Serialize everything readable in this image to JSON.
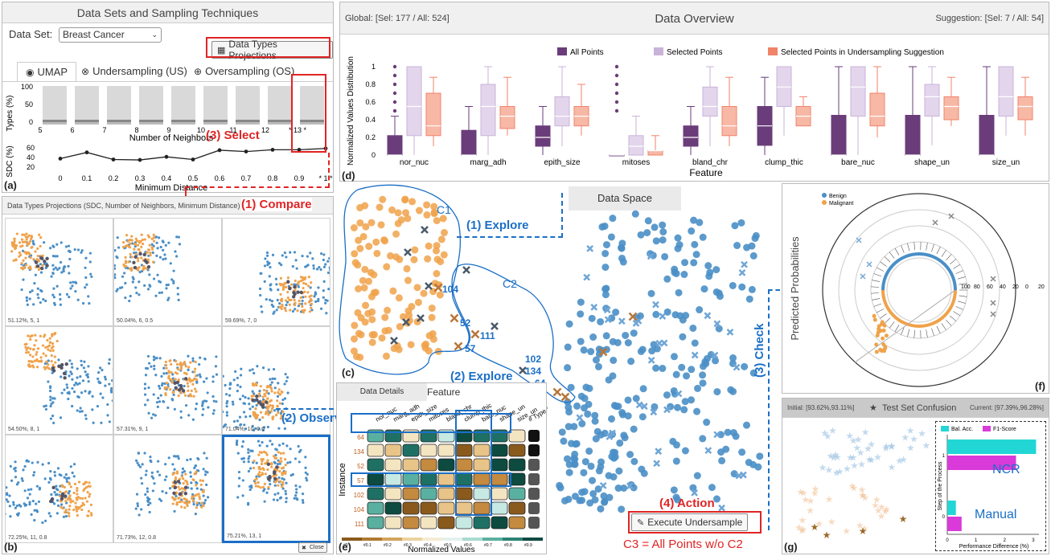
{
  "panel_a": {
    "title": "Data Sets and Sampling Techniques",
    "dataset_label": "Data Set:",
    "dataset_value": "Breast Cancer",
    "projections_button": "Data Types Projections",
    "tabs": [
      "UMAP",
      "Undersampling (US)",
      "Oversampling (OS)"
    ],
    "types_axis": "Types (%)",
    "types_ticks": [
      "100",
      "50",
      "0"
    ],
    "neighbors_ticks": [
      "5",
      "6",
      "7",
      "8",
      "9",
      "10",
      "11",
      "12",
      "* 13 *"
    ],
    "neighbors_label": "Number of Neighbors",
    "sdc_axis": "SDC (%)",
    "sdc_ticks": [
      "60",
      "40",
      "20"
    ],
    "distance_ticks": [
      "0",
      "0.1",
      "0.2",
      "0.3",
      "0.4",
      "0.5",
      "0.6",
      "0.7",
      "0.8",
      "0.9",
      "* 1 *"
    ],
    "distance_label": "Minimum Distance",
    "letter": "(a)"
  },
  "panel_b": {
    "title": "Data Types Projections (SDC, Number of Neighbors, Minimum Distance)",
    "captions": [
      "51.12%, 5, 1",
      "50.04%, 6, 0.5",
      "59.69%, 7, 0",
      "54.50%, 8, 1",
      "57.31%, 9, 1",
      "71.04%, 10, 0.6",
      "72.25%, 11, 0.8",
      "71.73%, 12, 0.8",
      "75.21%, 13, 1"
    ],
    "close_label": "Close",
    "letter": "(b)"
  },
  "panel_d": {
    "global": "Global: [Sel: 177 / All: 524]",
    "title": "Data Overview",
    "suggestion": "Suggestion: [Sel: 7 / All: 54]",
    "legend": [
      "All Points",
      "Selected Points",
      "Selected Points in Undersampling Suggestion"
    ],
    "y_label": "Normalized Values Distribution",
    "y_ticks": [
      "1",
      "0.8",
      "0.6",
      "0.4",
      "0.2",
      "0"
    ],
    "features": [
      "nor_nuc",
      "marg_adh",
      "epith_size",
      "mitoses",
      "bland_chr",
      "clump_thic",
      "bare_nuc",
      "shape_un",
      "size_un"
    ],
    "x_label": "Feature",
    "letter": "(d)"
  },
  "panel_c": {
    "title": "Data Space",
    "labels": {
      "c1": "C1",
      "c2": "C2",
      "i104": "104",
      "i52": "52",
      "i111": "111",
      "i57": "57",
      "i102": "102",
      "i134": "134",
      "i64": "64"
    },
    "execute_button": "Execute Undersample",
    "letter": "(c)"
  },
  "panel_e": {
    "title": "Data Details",
    "feature_header": "Feature",
    "columns": [
      "nor_nuc",
      "marg_adh",
      "epith_size",
      "mitoses",
      "bland_chr",
      "clump_thic",
      "bare_nuc",
      "shape_un",
      "size_un"
    ],
    "type_header": "# Type #",
    "rows": [
      "64",
      "134",
      "52",
      "57",
      "102",
      "104",
      "111"
    ],
    "y_label": "Instance",
    "scale_ticks": [
      "#0",
      "#0.1",
      "#0.2",
      "#0.3",
      "#0.4",
      "#0.5",
      "#0.6",
      "#0.7",
      "#0.8",
      "#0.9"
    ],
    "x_label": "Normalized Values",
    "letter": "(e)"
  },
  "panel_f": {
    "legend": [
      "Benign",
      "Malignant"
    ],
    "y_label": "Predicted Probabilities",
    "radial_ticks": [
      "100",
      "80",
      "60",
      "40",
      "20",
      "0",
      "20"
    ],
    "letter": "(f)"
  },
  "panel_g": {
    "initial": "Initial: [93.62%,93.11%]",
    "title": "Test Set Confusion",
    "current": "Current: [97.39%,96.28%]",
    "legend": [
      "Bal. Acc.",
      "F1-Score"
    ],
    "bar_chart_y_label": "Step of the Process",
    "bar_chart_x_label": "Performance Difference (%)",
    "x_ticks": [
      "0",
      "1",
      "2",
      "3"
    ],
    "step_ticks": [
      "1",
      "0"
    ],
    "ncr_label": "NCR",
    "manual_label": "Manual",
    "letter": "(g)"
  },
  "annotations": {
    "select": "(3) Select",
    "compare": "(1) Compare",
    "explore1": "(1) Explore",
    "explore2": "(2) Explore",
    "observe": "(2) Observe",
    "check": "(3) Check",
    "action": "(4) Action",
    "c3": "C3 = All Points w/o C2"
  },
  "colors": {
    "blue_point": "#4a8fc7",
    "orange_point": "#f0a24a",
    "purple_dark": "#6a3d7a",
    "purple_light": "#c9b3d9",
    "salmon": "#f0836a",
    "annotation_red": "#e02424",
    "annotation_blue": "#1b6fc7"
  },
  "chart_data": [
    {
      "type": "box",
      "y_label": "Normalized Values Distribution",
      "x_label": "Feature",
      "ylim": [
        0,
        1
      ],
      "categories": [
        "nor_nuc",
        "marg_adh",
        "epith_size",
        "mitoses",
        "bland_chr",
        "clump_thic",
        "bare_nuc",
        "shape_un",
        "size_un"
      ],
      "series": [
        {
          "name": "All Points",
          "q1": [
            0,
            0,
            0.1,
            0,
            0.1,
            0.11,
            0,
            0,
            0
          ],
          "median": [
            0,
            0,
            0.2,
            0,
            0.2,
            0.33,
            0,
            0,
            0
          ],
          "q3": [
            0.22,
            0.28,
            0.33,
            0,
            0.33,
            0.55,
            0.45,
            0.45,
            0.45
          ],
          "whisker_low": [
            0,
            0,
            0,
            0,
            0,
            0,
            0,
            0,
            0
          ],
          "whisker_high": [
            0.44,
            0.55,
            0.55,
            0,
            0.55,
            0.88,
            1,
            1,
            1
          ]
        },
        {
          "name": "Selected Points",
          "q1": [
            0.22,
            0.22,
            0.33,
            0,
            0.44,
            0.55,
            0.44,
            0.44,
            0.44
          ],
          "median": [
            0.55,
            0.55,
            0.44,
            0.1,
            0.55,
            0.77,
            0.77,
            0.66,
            0.66
          ],
          "q3": [
            1,
            0.8,
            0.66,
            0.22,
            0.77,
            1,
            1,
            0.8,
            1
          ],
          "whisker_low": [
            0,
            0,
            0.1,
            0,
            0.1,
            0.22,
            0,
            0.11,
            0.22
          ],
          "whisker_high": [
            1,
            1,
            1,
            0.44,
            1,
            1,
            1,
            1,
            1
          ]
        },
        {
          "name": "Selected Points in Undersampling Suggestion",
          "q1": [
            0.22,
            0.3,
            0.33,
            0,
            0.22,
            0.33,
            0.33,
            0.4,
            0.4
          ],
          "median": [
            0.33,
            0.44,
            0.44,
            0.05,
            0.33,
            0.44,
            0.44,
            0.55,
            0.55
          ],
          "q3": [
            0.7,
            0.55,
            0.55,
            0.05,
            0.55,
            0.55,
            0.7,
            0.66,
            0.66
          ],
          "whisker_low": [
            0.1,
            0.22,
            0.22,
            0,
            0.1,
            0.33,
            0.2,
            0.33,
            0.22
          ],
          "whisker_high": [
            0.88,
            0.88,
            0.8,
            0.22,
            0.88,
            0.66,
            1,
            0.88,
            0.88
          ]
        }
      ]
    },
    {
      "type": "line",
      "y_label": "SDC (%)",
      "x_label": "Minimum Distance",
      "x": [
        0,
        0.1,
        0.2,
        0.3,
        0.4,
        0.5,
        0.6,
        0.7,
        0.8,
        0.9,
        1
      ],
      "values": [
        52,
        66,
        50,
        49,
        56,
        50,
        71,
        68,
        72,
        72,
        75
      ]
    },
    {
      "type": "bar",
      "y_label": "Step of the Process",
      "x_label": "Performance Difference (%)",
      "categories": [
        "1",
        "0"
      ],
      "series": [
        {
          "name": "Bal. Acc.",
          "values": [
            3.1,
            0.3
          ]
        },
        {
          "name": "F1-Score",
          "values": [
            2.4,
            0.5
          ]
        }
      ],
      "xlim": [
        0,
        3.2
      ]
    }
  ]
}
